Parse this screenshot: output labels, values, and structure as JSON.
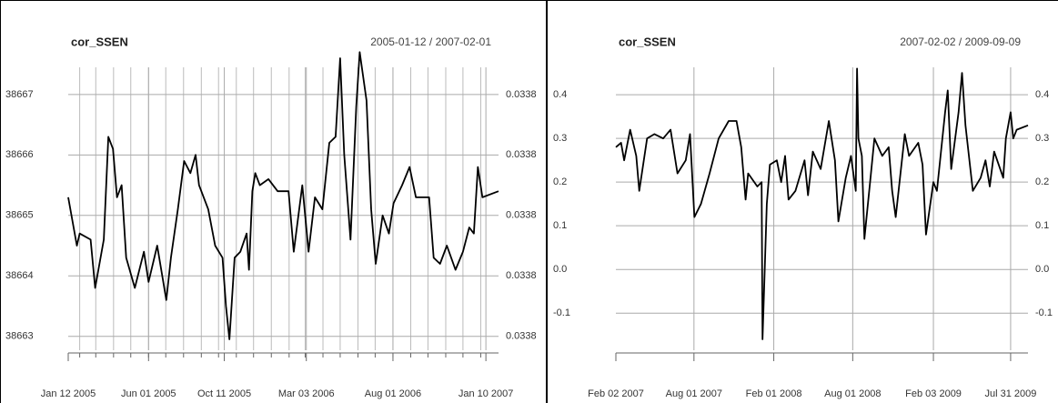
{
  "chart_data": [
    {
      "type": "line",
      "title": "cor_SSEN",
      "subtitle": "2005-01-12 / 2007-02-01",
      "color": "#000000",
      "grid": true,
      "minor_grid": "monthly",
      "x": [
        "2005-01-12",
        "2005-01-27",
        "2005-02-01",
        "2005-02-20",
        "2005-02-28",
        "2005-03-15",
        "2005-03-23",
        "2005-03-31",
        "2005-04-07",
        "2005-04-15",
        "2005-04-23",
        "2005-05-08",
        "2005-05-24",
        "2005-06-01",
        "2005-06-16",
        "2005-07-02",
        "2005-07-10",
        "2005-07-22",
        "2005-08-02",
        "2005-08-13",
        "2005-08-22",
        "2005-08-28",
        "2005-09-13",
        "2005-09-25",
        "2005-10-08",
        "2005-10-14",
        "2005-10-20",
        "2005-10-29",
        "2005-11-08",
        "2005-11-19",
        "2005-11-23",
        "2005-11-29",
        "2005-12-04",
        "2005-12-12",
        "2005-12-27",
        "2006-01-12",
        "2006-01-31",
        "2006-02-09",
        "2006-02-24",
        "2006-03-07",
        "2006-03-18",
        "2006-03-31",
        "2006-04-12",
        "2006-04-23",
        "2006-05-01",
        "2006-05-08",
        "2006-05-19",
        "2006-05-29",
        "2006-06-04",
        "2006-06-16",
        "2006-06-24",
        "2006-07-02",
        "2006-07-14",
        "2006-07-25",
        "2006-08-02",
        "2006-08-17",
        "2006-08-30",
        "2006-09-10",
        "2006-10-03",
        "2006-10-11",
        "2006-10-22",
        "2006-11-03",
        "2006-11-18",
        "2006-12-01",
        "2006-12-12",
        "2006-12-20",
        "2006-12-27",
        "2007-01-04",
        "2007-02-01"
      ],
      "values": [
        38665.3,
        38664.5,
        38664.7,
        38664.6,
        38663.8,
        38664.6,
        38666.3,
        38666.1,
        38665.3,
        38665.5,
        38664.3,
        38663.8,
        38664.4,
        38663.9,
        38664.5,
        38663.6,
        38664.3,
        38665.1,
        38665.9,
        38665.7,
        38666.0,
        38665.5,
        38665.1,
        38664.5,
        38664.3,
        38663.5,
        38662.95,
        38664.3,
        38664.4,
        38664.7,
        38664.1,
        38665.4,
        38665.7,
        38665.5,
        38665.6,
        38665.4,
        38665.4,
        38664.4,
        38665.5,
        38664.4,
        38665.3,
        38665.1,
        38666.2,
        38666.3,
        38667.6,
        38666.0,
        38664.6,
        38666.8,
        38667.7,
        38666.9,
        38665.1,
        38664.2,
        38665.0,
        38664.7,
        38665.2,
        38665.5,
        38665.8,
        38665.3,
        38665.3,
        38664.3,
        38664.2,
        38664.5,
        38664.1,
        38664.4,
        38664.8,
        38664.7,
        38665.8,
        38665.3,
        38665.4
      ],
      "ylim": [
        38662.77,
        38667.66
      ],
      "yticks": [
        38663,
        38664,
        38665,
        38666,
        38667
      ],
      "y2lim": [
        38662.77,
        38667.66
      ],
      "y2ticks": [
        {
          "value": 38663,
          "label": "0.0338"
        },
        {
          "value": 38664,
          "label": "0.0338"
        },
        {
          "value": 38665,
          "label": "0.0338"
        },
        {
          "value": 38666,
          "label": "0.0338"
        },
        {
          "value": 38667,
          "label": "0.0338"
        }
      ],
      "xticks": [
        {
          "value": "2005-01-12",
          "label": "Jan 12 2005"
        },
        {
          "value": "2005-06-01",
          "label": "Jun 01 2005"
        },
        {
          "value": "2005-10-11",
          "label": "Oct 11 2005"
        },
        {
          "value": "2006-03-03",
          "label": "Mar 03 2006"
        },
        {
          "value": "2006-08-01",
          "label": "Aug 01 2006"
        },
        {
          "value": "2007-01-10",
          "label": "Jan 10 2007"
        }
      ]
    },
    {
      "type": "line",
      "title": "cor_SSEN",
      "subtitle": "2007-02-02 / 2009-09-09",
      "color": "#000000",
      "grid": true,
      "x": [
        "2007-02-02",
        "2007-02-14",
        "2007-02-21",
        "2007-03-07",
        "2007-03-21",
        "2007-03-28",
        "2007-04-15",
        "2007-05-02",
        "2007-05-22",
        "2007-06-08",
        "2007-06-24",
        "2007-07-13",
        "2007-07-23",
        "2007-08-02",
        "2007-08-17",
        "2007-09-06",
        "2007-09-27",
        "2007-10-20",
        "2007-11-07",
        "2007-11-18",
        "2007-11-28",
        "2007-12-04",
        "2007-12-25",
        "2008-01-04",
        "2008-01-06",
        "2008-01-16",
        "2008-01-23",
        "2008-02-08",
        "2008-02-18",
        "2008-02-27",
        "2008-03-06",
        "2008-03-22",
        "2008-04-12",
        "2008-04-20",
        "2008-05-01",
        "2008-05-19",
        "2008-06-07",
        "2008-06-21",
        "2008-06-29",
        "2008-07-16",
        "2008-07-28",
        "2008-08-08",
        "2008-08-11",
        "2008-08-14",
        "2008-08-22",
        "2008-08-28",
        "2008-09-12",
        "2008-09-20",
        "2008-10-08",
        "2008-10-23",
        "2008-10-31",
        "2008-11-08",
        "2008-11-29",
        "2008-12-09",
        "2008-12-30",
        "2009-01-09",
        "2009-01-17",
        "2009-02-03",
        "2009-02-11",
        "2009-03-02",
        "2009-03-08",
        "2009-03-16",
        "2009-04-02",
        "2009-04-10",
        "2009-04-18",
        "2009-05-05",
        "2009-05-23",
        "2009-06-03",
        "2009-06-13",
        "2009-06-23",
        "2009-07-14",
        "2009-07-20",
        "2009-07-31",
        "2009-08-06",
        "2009-08-14",
        "2009-09-09"
      ],
      "values": [
        0.28,
        0.29,
        0.25,
        0.32,
        0.26,
        0.18,
        0.3,
        0.31,
        0.3,
        0.32,
        0.22,
        0.25,
        0.31,
        0.12,
        0.15,
        0.22,
        0.3,
        0.34,
        0.34,
        0.28,
        0.16,
        0.22,
        0.19,
        0.2,
        -0.16,
        0.15,
        0.24,
        0.25,
        0.2,
        0.26,
        0.16,
        0.18,
        0.25,
        0.17,
        0.27,
        0.23,
        0.34,
        0.25,
        0.11,
        0.21,
        0.26,
        0.18,
        0.46,
        0.3,
        0.26,
        0.07,
        0.22,
        0.3,
        0.26,
        0.28,
        0.18,
        0.12,
        0.31,
        0.26,
        0.29,
        0.24,
        0.08,
        0.2,
        0.18,
        0.36,
        0.41,
        0.23,
        0.36,
        0.45,
        0.33,
        0.18,
        0.21,
        0.25,
        0.19,
        0.27,
        0.21,
        0.3,
        0.36,
        0.3,
        0.32,
        0.33
      ],
      "ylim": [
        -0.185,
        0.492
      ],
      "yticks": [
        -0.1,
        {
          "value": 0,
          "label": "0.0"
        },
        0.1,
        0.2,
        0.3,
        0.4
      ],
      "y2lim": [
        -0.185,
        0.492
      ],
      "y2ticks": [
        -0.1,
        {
          "value": 0,
          "label": "0.0"
        },
        0.1,
        0.2,
        0.3,
        0.4
      ],
      "xticks": [
        {
          "value": "2007-02-02",
          "label": "Feb 02 2007"
        },
        {
          "value": "2007-08-01",
          "label": "Aug 01 2007"
        },
        {
          "value": "2008-02-01",
          "label": "Feb 01 2008"
        },
        {
          "value": "2008-08-01",
          "label": "Aug 01 2008"
        },
        {
          "value": "2009-02-03",
          "label": "Feb 03 2009"
        },
        {
          "value": "2009-07-31",
          "label": "Jul 31 2009"
        }
      ]
    }
  ]
}
